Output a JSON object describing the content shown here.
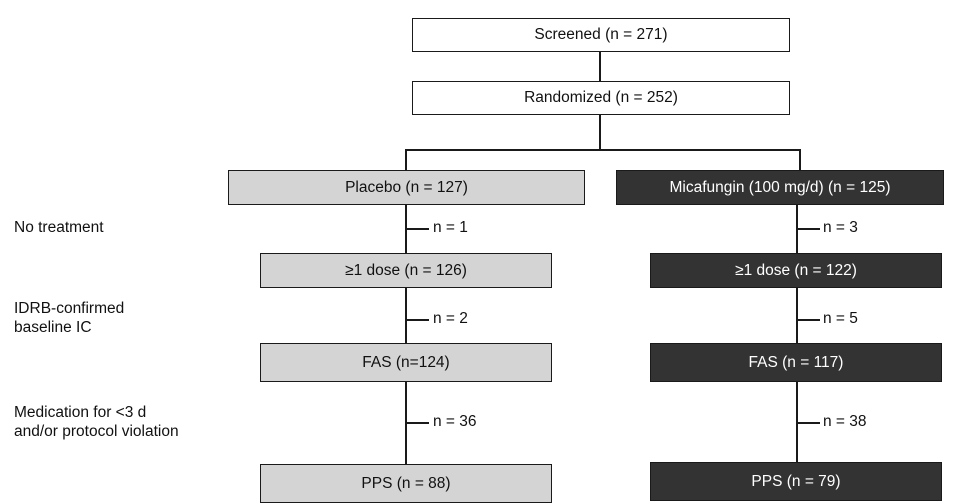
{
  "boxes": {
    "screened": "Screened  (n = 271)",
    "randomized": "Randomized (n = 252)",
    "placebo": "Placebo (n = 127)",
    "micafungin": "Micafungin (100 mg/d) (n = 125)",
    "placebo_dose": "≥1 dose (n = 126)",
    "micafungin_dose": "≥1 dose (n = 122)",
    "placebo_fas": "FAS (n=124)",
    "micafungin_fas": "FAS (n = 117)",
    "placebo_pps": "PPS (n = 88)",
    "micafungin_pps": "PPS (n = 79)"
  },
  "row_labels": {
    "no_treatment": "No treatment",
    "idrb_line1": "IDRB-confirmed",
    "idrb_line2": "baseline IC",
    "medication_line1": "Medication for <3 d",
    "medication_line2": "and/or protocol violation"
  },
  "exclusions": {
    "placebo_no_treatment": "n = 1",
    "micafungin_no_treatment": "n = 3",
    "placebo_idrb": "n = 2",
    "micafungin_idrb": "n = 5",
    "placebo_medication": "n = 36",
    "micafungin_medication": "n = 38"
  },
  "colors": {
    "placebo_fill": "#d4d4d4",
    "micafungin_fill": "#333333",
    "line": "#1a1a1a"
  }
}
